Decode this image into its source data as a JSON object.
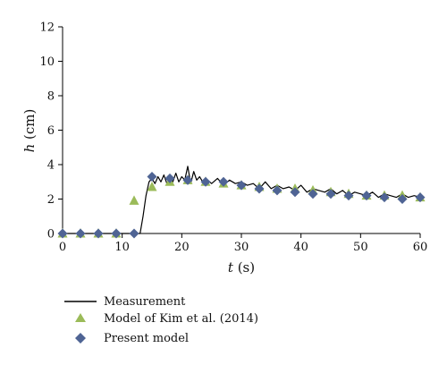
{
  "chart_data": {
    "type": "line",
    "xlabel": {
      "var": "t",
      "unit": " (s)"
    },
    "ylabel": {
      "var": "h",
      "unit": " (cm)"
    },
    "xlim": [
      0,
      60
    ],
    "ylim": [
      0,
      12
    ],
    "x_ticks": [
      0,
      10,
      20,
      30,
      40,
      50,
      60
    ],
    "y_ticks": [
      0,
      2,
      4,
      6,
      8,
      10,
      12
    ],
    "grid": false,
    "legend_position": "bottom-left",
    "series": [
      {
        "name": "Measurement",
        "type": "line",
        "color": "#000000",
        "x": [
          0,
          13,
          13.5,
          14,
          14.5,
          15,
          15.5,
          16,
          16.5,
          17,
          17.5,
          18,
          18.5,
          19,
          19.5,
          20,
          20.5,
          21,
          21.5,
          22,
          22.5,
          23,
          23.5,
          24,
          25,
          26,
          27,
          28,
          29,
          30,
          31,
          32,
          33,
          34,
          35,
          36,
          37,
          38,
          39,
          40,
          41,
          42,
          43,
          44,
          45,
          46,
          47,
          48,
          49,
          50,
          51,
          52,
          53,
          54,
          55,
          56,
          57,
          58,
          59,
          60
        ],
        "y": [
          0,
          0,
          1.0,
          2.2,
          3.0,
          3.2,
          2.9,
          3.3,
          3.0,
          3.4,
          2.9,
          3.2,
          3.0,
          3.5,
          3.0,
          3.3,
          3.1,
          3.9,
          2.9,
          3.6,
          3.1,
          3.3,
          3.0,
          3.2,
          2.9,
          3.2,
          2.8,
          3.1,
          2.9,
          3.0,
          2.8,
          2.9,
          2.6,
          3.0,
          2.6,
          2.8,
          2.6,
          2.7,
          2.5,
          2.8,
          2.4,
          2.6,
          2.5,
          2.4,
          2.6,
          2.3,
          2.5,
          2.2,
          2.4,
          2.3,
          2.2,
          2.4,
          2.1,
          2.3,
          2.2,
          2.1,
          2.3,
          2.1,
          2.2,
          2.1
        ]
      },
      {
        "name": "Model of Kim et al. (2014)",
        "type": "scatter",
        "marker": "triangle",
        "color": "#9bbb59",
        "x": [
          0,
          3,
          6,
          9,
          12,
          15,
          18,
          21,
          24,
          27,
          30,
          33,
          36,
          39,
          42,
          45,
          48,
          51,
          54,
          57,
          60
        ],
        "y": [
          0,
          0,
          0,
          0,
          1.9,
          2.7,
          3.0,
          3.1,
          3.0,
          2.9,
          2.8,
          2.7,
          2.6,
          2.6,
          2.5,
          2.4,
          2.3,
          2.2,
          2.2,
          2.2,
          2.1
        ]
      },
      {
        "name": "Present model",
        "type": "scatter",
        "marker": "diamond",
        "color": "#4f6494",
        "x": [
          0,
          3,
          6,
          9,
          12,
          15,
          18,
          21,
          24,
          27,
          30,
          33,
          36,
          39,
          42,
          45,
          48,
          51,
          54,
          57,
          60
        ],
        "y": [
          0,
          0,
          0,
          0,
          0,
          3.3,
          3.2,
          3.1,
          3.0,
          3.0,
          2.8,
          2.6,
          2.5,
          2.4,
          2.3,
          2.3,
          2.2,
          2.2,
          2.1,
          2.0,
          2.1
        ]
      }
    ]
  }
}
